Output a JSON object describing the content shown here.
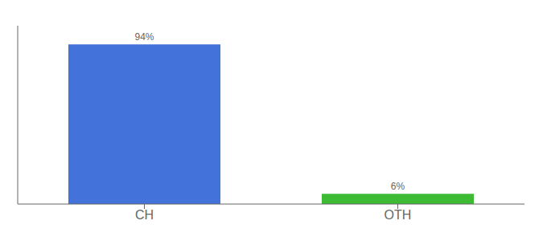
{
  "chart_data": {
    "type": "bar",
    "categories": [
      "CH",
      "OTH"
    ],
    "values": [
      94,
      6
    ],
    "value_labels": [
      "94%",
      "6%"
    ],
    "colors": [
      "#4472db",
      "#3dbb35"
    ],
    "ylim": [
      0,
      105
    ],
    "data_labels": true,
    "tick_labels": "x",
    "grid": false
  }
}
